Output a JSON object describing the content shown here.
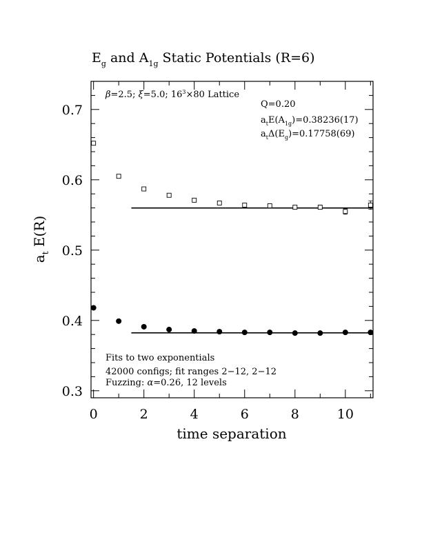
{
  "chart_data": {
    "type": "scatter",
    "title_parts": {
      "e": "E",
      "e_sub": "g",
      "and": " and ",
      "a": "A",
      "a_sub": "1g",
      "rest": " Static Potentials (R=6)"
    },
    "xlabel": "time separation",
    "ylabel": {
      "main": "a",
      "sub": "t",
      "rest": " E(R)"
    },
    "xlim": [
      -0.1,
      11.1
    ],
    "ylim": [
      0.29,
      0.74
    ],
    "x_ticks": [
      0,
      2,
      4,
      6,
      8,
      10
    ],
    "x_tick_labels": [
      "0",
      "2",
      "4",
      "6",
      "8",
      "10"
    ],
    "y_ticks": [
      0.3,
      0.4,
      0.5,
      0.6,
      0.7
    ],
    "y_tick_labels": [
      "0.3",
      "0.4",
      "0.5",
      "0.6",
      "0.7"
    ],
    "grid": false,
    "legend": "none",
    "series": [
      {
        "marker": "open-square",
        "x": [
          0,
          1,
          2,
          3,
          4,
          5,
          6,
          7,
          8,
          9,
          10,
          11
        ],
        "y": [
          0.652,
          0.605,
          0.587,
          0.578,
          0.571,
          0.567,
          0.564,
          0.563,
          0.561,
          0.561,
          0.555,
          0.564
        ],
        "err": [
          0.001,
          0.001,
          0.001,
          0.001,
          0.001,
          0.001,
          0.002,
          0.002,
          0.002,
          0.003,
          0.004,
          0.006
        ]
      },
      {
        "marker": "filled-circle",
        "x": [
          0,
          1,
          2,
          3,
          4,
          5,
          6,
          7,
          8,
          9,
          10,
          11
        ],
        "y": [
          0.418,
          0.399,
          0.391,
          0.387,
          0.385,
          0.384,
          0.383,
          0.383,
          0.382,
          0.382,
          0.383,
          0.383
        ],
        "err": [
          0,
          0,
          0,
          0,
          0,
          0,
          0,
          0,
          0,
          0,
          0,
          0
        ]
      }
    ],
    "fit_lines": [
      {
        "x": [
          1.5,
          11.1
        ],
        "y": 0.5599
      },
      {
        "x": [
          1.5,
          11.1
        ],
        "y": 0.38236
      }
    ],
    "annotations": {
      "lattice": {
        "beta": "β",
        "eq1": "=2.5; ",
        "xi": "ξ",
        "eq2": "=5.0; 16",
        "sup": "3",
        "rest": "×80 Lattice"
      },
      "q": "Q=0.20",
      "ea": {
        "pre": "a",
        "pre_sub": "t",
        "mid": "E(A",
        "sub": "1g",
        "rest": ")=0.38236(17)"
      },
      "de": {
        "pre": "a",
        "pre_sub": "t",
        "mid": "Δ(E",
        "sub": "g",
        "rest": ")=0.17758(69)"
      },
      "fit1": "Fits to two exponentials",
      "fit2": "42000 configs; fit ranges 2−12, 2−12",
      "fuzz": {
        "pre": "Fuzzing: ",
        "alpha": "α",
        "rest": "=0.26, 12 levels"
      }
    }
  }
}
